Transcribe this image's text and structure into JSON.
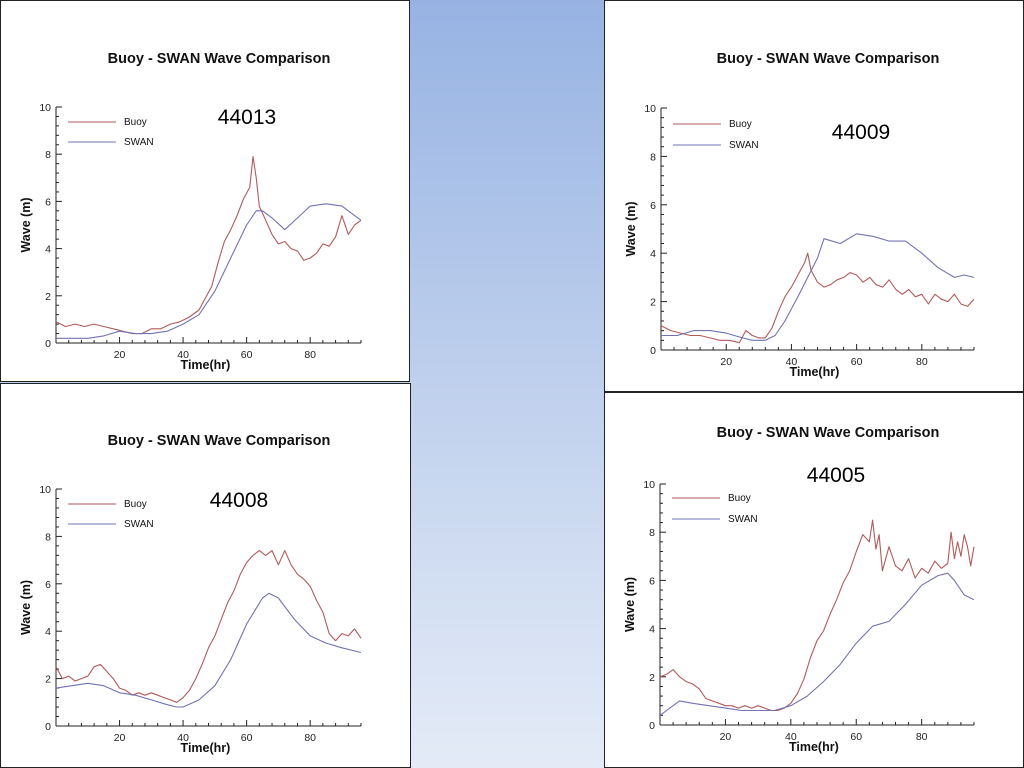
{
  "chart_data": [
    {
      "type": "line",
      "title": "Buoy - SWAN Wave Comparison",
      "station": "44013",
      "xlabel": "Time(hr)",
      "ylabel": "Wave (m)",
      "xlim": [
        0,
        96
      ],
      "ylim": [
        0,
        10
      ],
      "xticks": [
        "20",
        "40",
        "60",
        "80"
      ],
      "yticks": [
        "0",
        "2",
        "4",
        "6",
        "8",
        "10"
      ],
      "legend_position": "top-left",
      "series": [
        {
          "name": "Buoy",
          "color": "#b35a5a",
          "x": [
            0,
            3,
            6,
            9,
            12,
            15,
            18,
            21,
            24,
            27,
            30,
            33,
            36,
            39,
            42,
            45,
            47,
            49,
            51,
            53,
            55,
            57,
            59,
            61,
            62,
            63,
            64,
            66,
            68,
            70,
            72,
            74,
            76,
            78,
            80,
            82,
            84,
            86,
            88,
            90,
            92,
            94,
            96
          ],
          "y": [
            0.9,
            0.7,
            0.8,
            0.7,
            0.8,
            0.7,
            0.6,
            0.5,
            0.4,
            0.4,
            0.6,
            0.6,
            0.8,
            0.9,
            1.1,
            1.4,
            1.9,
            2.4,
            3.4,
            4.3,
            4.8,
            5.4,
            6.1,
            6.6,
            7.9,
            7.0,
            5.8,
            5.2,
            4.6,
            4.2,
            4.3,
            4.0,
            3.9,
            3.5,
            3.6,
            3.8,
            4.2,
            4.1,
            4.5,
            5.4,
            4.6,
            5.0,
            5.2
          ]
        },
        {
          "name": "SWAN",
          "color": "#7272b5",
          "x": [
            0,
            5,
            10,
            15,
            20,
            25,
            30,
            35,
            40,
            45,
            50,
            55,
            60,
            63,
            65,
            68,
            72,
            76,
            80,
            85,
            90,
            93,
            96
          ],
          "y": [
            0.2,
            0.2,
            0.2,
            0.3,
            0.5,
            0.4,
            0.4,
            0.5,
            0.8,
            1.2,
            2.2,
            3.6,
            5.0,
            5.6,
            5.6,
            5.3,
            4.8,
            5.3,
            5.8,
            5.9,
            5.8,
            5.5,
            5.2
          ]
        }
      ]
    },
    {
      "type": "line",
      "title": "Buoy - SWAN Wave Comparison",
      "station": "44009",
      "xlabel": "Time(hr)",
      "ylabel": "Wave (m)",
      "xlim": [
        0,
        96
      ],
      "ylim": [
        0,
        10
      ],
      "xticks": [
        "20",
        "40",
        "60",
        "80"
      ],
      "yticks": [
        "0",
        "2",
        "4",
        "6",
        "8",
        "10"
      ],
      "legend_position": "top-left",
      "series": [
        {
          "name": "Buoy",
          "color": "#b35a5a",
          "x": [
            0,
            3,
            6,
            9,
            12,
            15,
            18,
            21,
            24,
            26,
            28,
            30,
            32,
            34,
            36,
            38,
            40,
            42,
            44,
            45,
            46,
            48,
            50,
            52,
            54,
            56,
            58,
            60,
            62,
            64,
            66,
            68,
            70,
            72,
            74,
            76,
            78,
            80,
            82,
            84,
            86,
            88,
            90,
            92,
            94,
            96
          ],
          "y": [
            1.0,
            0.8,
            0.7,
            0.6,
            0.6,
            0.5,
            0.4,
            0.4,
            0.3,
            0.8,
            0.6,
            0.5,
            0.5,
            0.9,
            1.6,
            2.2,
            2.6,
            3.1,
            3.6,
            4.0,
            3.3,
            2.8,
            2.6,
            2.7,
            2.9,
            3.0,
            3.2,
            3.1,
            2.8,
            3.0,
            2.7,
            2.6,
            2.9,
            2.5,
            2.3,
            2.5,
            2.2,
            2.3,
            1.9,
            2.3,
            2.1,
            2.0,
            2.3,
            1.9,
            1.8,
            2.1
          ]
        },
        {
          "name": "SWAN",
          "color": "#7272b5",
          "x": [
            0,
            5,
            10,
            15,
            20,
            25,
            28,
            32,
            35,
            38,
            42,
            45,
            48,
            50,
            55,
            60,
            65,
            70,
            75,
            80,
            85,
            90,
            93,
            96
          ],
          "y": [
            0.6,
            0.6,
            0.8,
            0.8,
            0.7,
            0.5,
            0.4,
            0.4,
            0.6,
            1.2,
            2.2,
            3.0,
            3.8,
            4.6,
            4.4,
            4.8,
            4.7,
            4.5,
            4.5,
            4.0,
            3.4,
            3.0,
            3.1,
            3.0
          ]
        }
      ]
    },
    {
      "type": "line",
      "title": "Buoy - SWAN Wave Comparison",
      "station": "44008",
      "xlabel": "Time(hr)",
      "ylabel": "Wave (m)",
      "xlim": [
        0,
        96
      ],
      "ylim": [
        0,
        10
      ],
      "xticks": [
        "20",
        "40",
        "60",
        "80"
      ],
      "yticks": [
        "0",
        "2",
        "4",
        "6",
        "8",
        "10"
      ],
      "legend_position": "top-left",
      "series": [
        {
          "name": "Buoy",
          "color": "#b35a5a",
          "x": [
            0,
            2,
            4,
            6,
            8,
            10,
            12,
            14,
            16,
            18,
            20,
            22,
            24,
            26,
            28,
            30,
            32,
            34,
            36,
            38,
            40,
            42,
            44,
            46,
            48,
            50,
            52,
            54,
            56,
            58,
            60,
            62,
            64,
            66,
            68,
            70,
            72,
            74,
            76,
            78,
            80,
            82,
            84,
            86,
            88,
            90,
            92,
            94,
            96
          ],
          "y": [
            2.5,
            2.0,
            2.1,
            1.9,
            2.0,
            2.1,
            2.5,
            2.6,
            2.3,
            2.0,
            1.6,
            1.5,
            1.3,
            1.4,
            1.3,
            1.4,
            1.3,
            1.2,
            1.1,
            1.0,
            1.2,
            1.5,
            2.0,
            2.6,
            3.3,
            3.8,
            4.5,
            5.2,
            5.7,
            6.4,
            6.9,
            7.2,
            7.4,
            7.2,
            7.4,
            6.8,
            7.4,
            6.8,
            6.4,
            6.2,
            5.9,
            5.3,
            4.8,
            3.9,
            3.6,
            3.9,
            3.8,
            4.1,
            3.7
          ]
        },
        {
          "name": "SWAN",
          "color": "#7272b5",
          "x": [
            0,
            5,
            10,
            15,
            20,
            25,
            30,
            35,
            38,
            40,
            45,
            50,
            55,
            60,
            65,
            67,
            70,
            75,
            80,
            85,
            90,
            96
          ],
          "y": [
            1.6,
            1.7,
            1.8,
            1.7,
            1.4,
            1.3,
            1.1,
            0.9,
            0.8,
            0.8,
            1.1,
            1.7,
            2.8,
            4.3,
            5.4,
            5.6,
            5.4,
            4.5,
            3.8,
            3.5,
            3.3,
            3.1
          ]
        }
      ]
    },
    {
      "type": "line",
      "title": "Buoy - SWAN Wave Comparison",
      "station": "44005",
      "xlabel": "Time(hr)",
      "ylabel": "Wave (m)",
      "xlim": [
        0,
        96
      ],
      "ylim": [
        0,
        10
      ],
      "xticks": [
        "20",
        "40",
        "60",
        "80"
      ],
      "yticks": [
        "0",
        "2",
        "4",
        "6",
        "8",
        "10"
      ],
      "legend_position": "top-left",
      "series": [
        {
          "name": "Buoy",
          "color": "#b35a5a",
          "x": [
            0,
            2,
            4,
            6,
            8,
            10,
            12,
            14,
            16,
            18,
            20,
            22,
            24,
            26,
            28,
            30,
            32,
            34,
            36,
            38,
            40,
            42,
            44,
            46,
            48,
            50,
            52,
            54,
            56,
            58,
            60,
            62,
            64,
            65,
            66,
            67,
            68,
            70,
            72,
            74,
            76,
            78,
            80,
            82,
            84,
            86,
            88,
            89,
            90,
            91,
            92,
            93,
            94,
            95,
            96
          ],
          "y": [
            2.0,
            2.1,
            2.3,
            2.0,
            1.8,
            1.7,
            1.5,
            1.1,
            1.0,
            0.9,
            0.8,
            0.8,
            0.7,
            0.8,
            0.7,
            0.8,
            0.7,
            0.6,
            0.6,
            0.7,
            0.9,
            1.3,
            1.9,
            2.8,
            3.5,
            3.9,
            4.6,
            5.2,
            5.9,
            6.4,
            7.2,
            7.9,
            7.6,
            8.5,
            7.3,
            7.9,
            6.4,
            7.4,
            6.6,
            6.4,
            6.9,
            6.1,
            6.5,
            6.3,
            6.8,
            6.5,
            6.7,
            8.0,
            6.9,
            7.6,
            7.0,
            7.9,
            7.4,
            6.6,
            7.4
          ]
        },
        {
          "name": "SWAN",
          "color": "#7272b5",
          "x": [
            0,
            3,
            6,
            10,
            15,
            20,
            25,
            30,
            35,
            40,
            45,
            50,
            55,
            60,
            65,
            70,
            75,
            80,
            85,
            88,
            90,
            93,
            96
          ],
          "y": [
            0.4,
            0.7,
            1.0,
            0.9,
            0.8,
            0.7,
            0.6,
            0.6,
            0.6,
            0.8,
            1.2,
            1.8,
            2.5,
            3.4,
            4.1,
            4.3,
            5.0,
            5.8,
            6.2,
            6.3,
            6.0,
            5.4,
            5.2
          ]
        }
      ]
    }
  ]
}
